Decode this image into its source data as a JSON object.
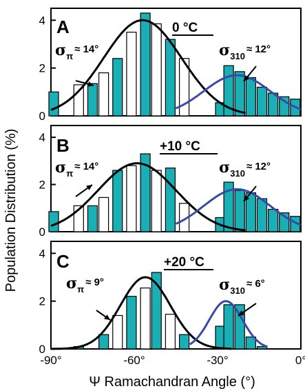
{
  "chart_data": [
    {
      "type": "bar",
      "panel_label": "A",
      "temperature_label": "0 °C",
      "x_tick_labels": [],
      "y_tick_labels": [
        "0",
        "2",
        "4"
      ],
      "ylim": [
        0,
        4.5
      ],
      "bars": [
        {
          "x": -90,
          "y": 1.0,
          "fill": "teal"
        },
        {
          "x": -81,
          "y": 1.3,
          "fill": "white"
        },
        {
          "x": -76,
          "y": 1.35,
          "fill": "teal"
        },
        {
          "x": -72,
          "y": 1.8,
          "fill": "white"
        },
        {
          "x": -67,
          "y": 2.4,
          "fill": "teal"
        },
        {
          "x": -62,
          "y": 3.5,
          "fill": "white"
        },
        {
          "x": -57,
          "y": 4.3,
          "fill": "teal"
        },
        {
          "x": -53,
          "y": 3.85,
          "fill": "white"
        },
        {
          "x": -48,
          "y": 3.2,
          "fill": "teal"
        },
        {
          "x": -43,
          "y": 2.4,
          "fill": "white"
        },
        {
          "x": -30,
          "y": 0.55,
          "fill": "teal"
        },
        {
          "x": -27,
          "y": 2.1,
          "fill": "teal"
        },
        {
          "x": -23,
          "y": 1.85,
          "fill": "teal"
        },
        {
          "x": -19,
          "y": 1.6,
          "fill": "teal"
        },
        {
          "x": -15,
          "y": 1.2,
          "fill": "teal"
        },
        {
          "x": -11,
          "y": 0.95,
          "fill": "teal"
        },
        {
          "x": -7,
          "y": 0.8,
          "fill": "teal"
        },
        {
          "x": -3,
          "y": 0.7,
          "fill": "teal"
        }
      ],
      "fits": [
        {
          "component": "pi",
          "color": "#000000",
          "mean": -57,
          "sigma": 14,
          "amplitude": 4.0,
          "range": [
            -90,
            -20
          ]
        },
        {
          "component": "310",
          "color": "#3a49a6",
          "mean": -23,
          "sigma": 12,
          "amplitude": 1.7,
          "range": [
            -45,
            0
          ]
        }
      ],
      "annotations": {
        "pi": {
          "symbol": "σ",
          "sub": "π",
          "value": "≈ 14°"
        },
        "310": {
          "symbol": "σ",
          "sub": "310",
          "value": "≈ 12°"
        }
      }
    },
    {
      "type": "bar",
      "panel_label": "B",
      "temperature_label": "+10 °C",
      "x_tick_labels": [],
      "y_tick_labels": [
        "0",
        "2",
        "4"
      ],
      "ylim": [
        0,
        4.5
      ],
      "bars": [
        {
          "x": -90,
          "y": 0.85,
          "fill": "teal"
        },
        {
          "x": -81,
          "y": 1.1,
          "fill": "white"
        },
        {
          "x": -76,
          "y": 1.1,
          "fill": "teal"
        },
        {
          "x": -72,
          "y": 1.45,
          "fill": "white"
        },
        {
          "x": -67,
          "y": 2.6,
          "fill": "teal"
        },
        {
          "x": -62,
          "y": 2.8,
          "fill": "white"
        },
        {
          "x": -57,
          "y": 3.3,
          "fill": "teal"
        },
        {
          "x": -53,
          "y": 2.6,
          "fill": "white"
        },
        {
          "x": -48,
          "y": 2.7,
          "fill": "teal"
        },
        {
          "x": -43,
          "y": 1.2,
          "fill": "white"
        },
        {
          "x": -30,
          "y": 0.6,
          "fill": "teal"
        },
        {
          "x": -27,
          "y": 2.1,
          "fill": "teal"
        },
        {
          "x": -23,
          "y": 1.75,
          "fill": "teal"
        },
        {
          "x": -19,
          "y": 1.65,
          "fill": "teal"
        },
        {
          "x": -15,
          "y": 1.4,
          "fill": "teal"
        },
        {
          "x": -11,
          "y": 0.95,
          "fill": "teal"
        },
        {
          "x": -7,
          "y": 0.8,
          "fill": "teal"
        },
        {
          "x": -3,
          "y": 0.65,
          "fill": "teal"
        }
      ],
      "fits": [
        {
          "component": "pi",
          "color": "#000000",
          "mean": -59,
          "sigma": 14,
          "amplitude": 2.9,
          "range": [
            -90,
            -20
          ]
        },
        {
          "component": "310",
          "color": "#3a49a6",
          "mean": -23,
          "sigma": 12,
          "amplitude": 1.8,
          "range": [
            -45,
            0
          ]
        }
      ],
      "annotations": {
        "pi": {
          "symbol": "σ",
          "sub": "π",
          "value": "≈ 14°"
        },
        "310": {
          "symbol": "σ",
          "sub": "310",
          "value": "≈ 12°"
        }
      }
    },
    {
      "type": "bar",
      "panel_label": "C",
      "temperature_label": "+20 °C",
      "xlabel": "Ψ Ramachandran Angle (°)",
      "x_tick_labels": [
        "-90°",
        "-60°",
        "-30°",
        "0°"
      ],
      "y_tick_labels": [
        "0",
        "2",
        "4"
      ],
      "ylim": [
        0,
        4.5
      ],
      "bars": [
        {
          "x": -81,
          "y": 0.1,
          "fill": "teal"
        },
        {
          "x": -72,
          "y": 0.6,
          "fill": "teal"
        },
        {
          "x": -67,
          "y": 1.4,
          "fill": "white"
        },
        {
          "x": -62,
          "y": 2.2,
          "fill": "teal"
        },
        {
          "x": -57,
          "y": 2.55,
          "fill": "white"
        },
        {
          "x": -53,
          "y": 3.2,
          "fill": "teal"
        },
        {
          "x": -48,
          "y": 1.45,
          "fill": "white"
        },
        {
          "x": -43,
          "y": 0.6,
          "fill": "teal"
        },
        {
          "x": -30,
          "y": 0.95,
          "fill": "teal"
        },
        {
          "x": -27,
          "y": 1.85,
          "fill": "teal"
        },
        {
          "x": -23,
          "y": 1.85,
          "fill": "teal"
        },
        {
          "x": -19,
          "y": 0.5,
          "fill": "teal"
        },
        {
          "x": -15,
          "y": 0.1,
          "fill": "teal"
        }
      ],
      "fits": [
        {
          "component": "pi",
          "color": "#000000",
          "mean": -56,
          "sigma": 9,
          "amplitude": 3.0,
          "range": [
            -90,
            -25
          ]
        },
        {
          "component": "310",
          "color": "#3a49a6",
          "mean": -27,
          "sigma": 6,
          "amplitude": 2.0,
          "range": [
            -40,
            -12
          ]
        }
      ],
      "annotations": {
        "pi": {
          "symbol": "σ",
          "sub": "π",
          "value": "≈ 9°"
        },
        "310": {
          "symbol": "σ",
          "sub": "310",
          "value": "≈ 6°"
        }
      }
    }
  ],
  "ylabel": "Population Distribution (%)",
  "xlim": [
    -90,
    0
  ],
  "colors": {
    "teal": "#1aaeb5",
    "white": "#ffffff",
    "blue": "#3a49a6",
    "black": "#000000"
  }
}
